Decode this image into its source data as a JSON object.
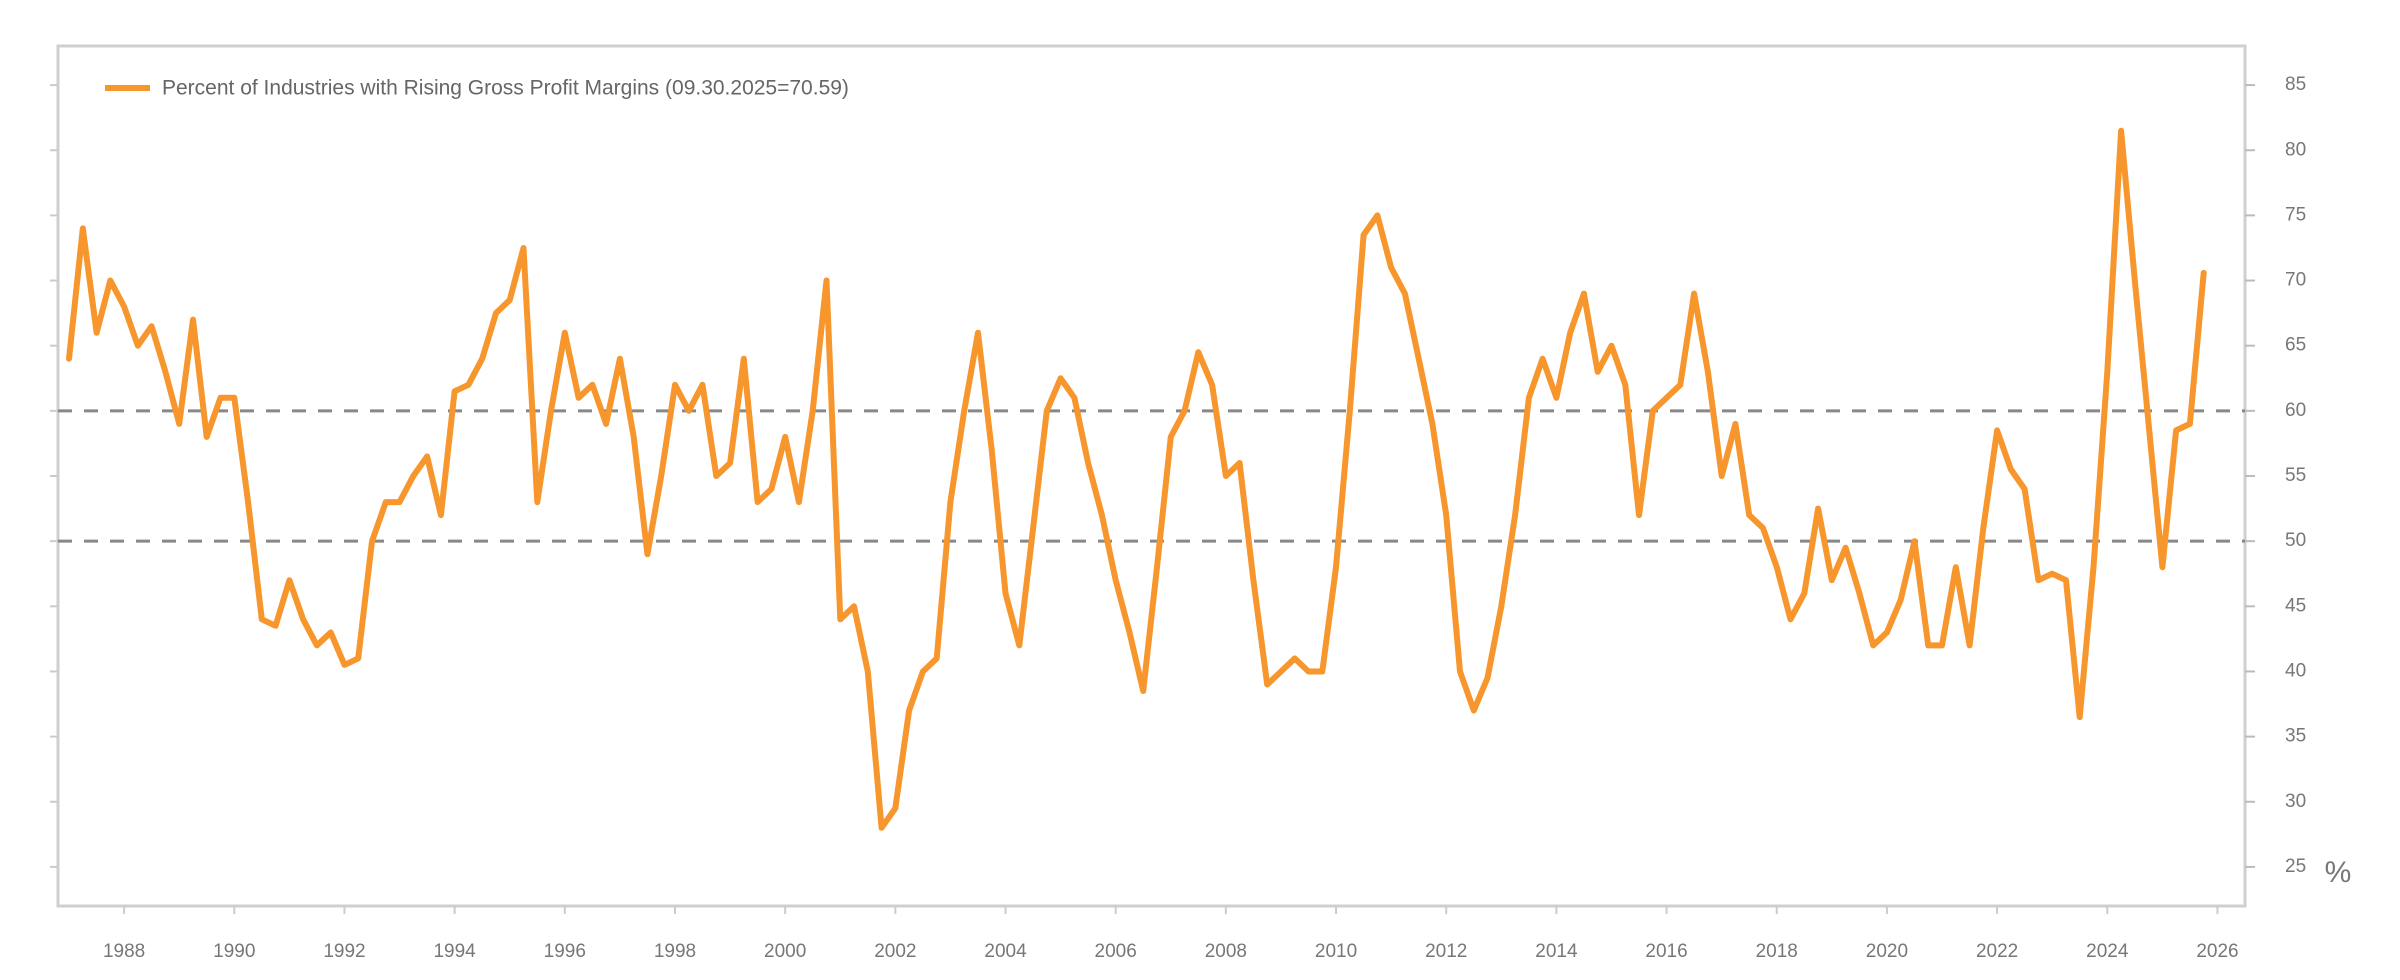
{
  "chart_data": {
    "type": "line",
    "series": [
      {
        "name": "Percent of Industries with Rising Gross Profit Margins (09.30.2025=70.59)",
        "color": "#f7962d",
        "values": [
          64,
          74,
          66,
          70,
          68,
          65,
          66.5,
          63,
          59,
          67,
          58,
          61,
          61,
          53,
          44,
          43.5,
          47,
          44,
          42,
          43,
          40.5,
          41,
          50,
          53,
          53,
          55,
          56.5,
          52,
          61.5,
          62,
          64,
          67.5,
          68.5,
          72.5,
          53,
          60,
          66,
          61,
          62,
          59,
          64,
          58,
          49,
          55,
          62,
          60,
          62,
          55,
          56,
          64,
          53,
          54,
          58,
          53,
          60,
          70,
          44,
          45,
          40,
          28,
          29.5,
          37,
          40,
          41,
          53,
          60,
          66,
          57,
          46,
          42,
          51,
          60,
          62.5,
          61,
          56,
          52,
          47,
          43,
          38.5,
          48,
          58,
          60,
          64.5,
          62,
          55,
          56,
          47,
          39,
          40,
          41,
          40,
          40,
          48,
          60,
          73.5,
          75,
          71,
          69,
          64,
          59,
          52,
          40,
          37,
          39.5,
          45,
          52,
          61,
          64,
          61,
          66,
          69,
          63,
          65,
          62,
          52,
          60,
          61,
          62,
          69,
          63,
          55,
          59,
          52,
          51,
          48,
          44,
          46,
          52.5,
          47,
          49.5,
          46,
          42,
          43,
          45.5,
          50,
          42,
          42,
          48,
          42,
          51,
          58.5,
          55.5,
          54,
          47,
          47.5,
          47,
          36.5,
          48,
          63,
          81.5,
          70,
          59,
          48,
          58.5,
          59,
          70.59
        ]
      }
    ],
    "x": [
      1987,
      1987.25,
      1987.5,
      1987.75,
      1988,
      1988.25,
      1988.5,
      1988.75,
      1989,
      1989.25,
      1989.5,
      1989.75,
      1990,
      1990.25,
      1990.5,
      1990.75,
      1991,
      1991.25,
      1991.5,
      1991.75,
      1992,
      1992.25,
      1992.5,
      1992.75,
      1993,
      1993.25,
      1993.5,
      1993.75,
      1994,
      1994.25,
      1994.5,
      1994.75,
      1995,
      1995.25,
      1995.5,
      1995.75,
      1996,
      1996.25,
      1996.5,
      1996.75,
      1997,
      1997.25,
      1997.5,
      1997.75,
      1998,
      1998.25,
      1998.5,
      1998.75,
      1999,
      1999.25,
      1999.5,
      1999.75,
      2000,
      2000.25,
      2000.5,
      2000.75,
      2001,
      2001.25,
      2001.5,
      2001.75,
      2002,
      2002.25,
      2002.5,
      2002.75,
      2003,
      2003.25,
      2003.5,
      2003.75,
      2004,
      2004.25,
      2004.5,
      2004.75,
      2005,
      2005.25,
      2005.5,
      2005.75,
      2006,
      2006.25,
      2006.5,
      2006.75,
      2007,
      2007.25,
      2007.5,
      2007.75,
      2008,
      2008.25,
      2008.5,
      2008.75,
      2009,
      2009.25,
      2009.5,
      2009.75,
      2010,
      2010.25,
      2010.5,
      2010.75,
      2011,
      2011.25,
      2011.5,
      2011.75,
      2012,
      2012.25,
      2012.5,
      2012.75,
      2013,
      2013.25,
      2013.5,
      2013.75,
      2014,
      2014.25,
      2014.5,
      2014.75,
      2015,
      2015.25,
      2015.5,
      2015.75,
      2016,
      2016.25,
      2016.5,
      2016.75,
      2017,
      2017.25,
      2017.5,
      2017.75,
      2018,
      2018.25,
      2018.5,
      2018.75,
      2019,
      2019.25,
      2019.5,
      2019.75,
      2020,
      2020.25,
      2020.5,
      2020.75,
      2021,
      2021.25,
      2021.5,
      2021.75,
      2022,
      2022.25,
      2022.5,
      2022.75,
      2023,
      2023.25,
      2023.5,
      2023.75,
      2024,
      2024.25,
      2024.5,
      2024.75,
      2025,
      2025.25,
      2025.5,
      2025.75
    ],
    "xlim": [
      1986.8,
      2026.5
    ],
    "xticks": [
      1988,
      1990,
      1992,
      1994,
      1996,
      1998,
      2000,
      2002,
      2004,
      2006,
      2008,
      2010,
      2012,
      2014,
      2016,
      2018,
      2020,
      2022,
      2024,
      2026
    ],
    "ylim": [
      22,
      88
    ],
    "yticks": [
      25,
      30,
      35,
      40,
      45,
      50,
      55,
      60,
      65,
      70,
      75,
      80,
      85
    ],
    "y_label": "%",
    "reference_lines": [
      50,
      60
    ],
    "y_axis_side": "right"
  }
}
